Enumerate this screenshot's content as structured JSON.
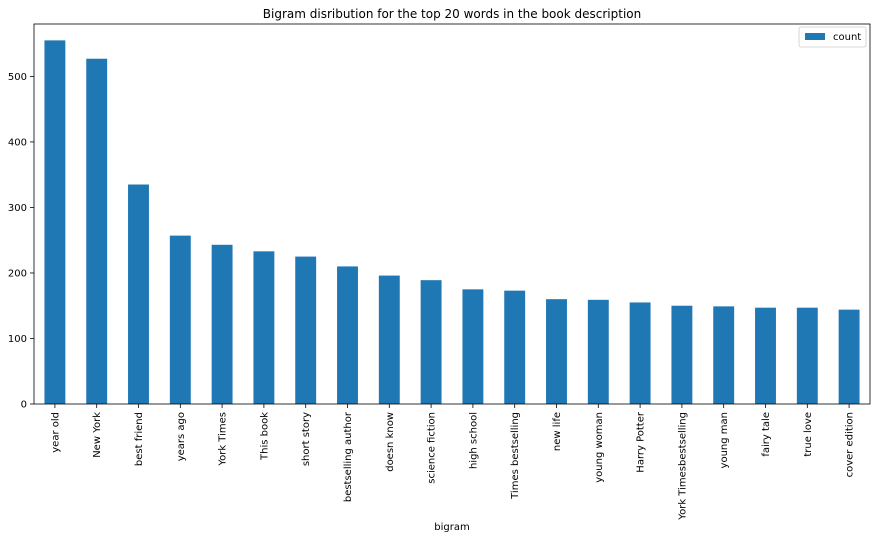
{
  "chart_data": {
    "type": "bar",
    "title": "Bigram disribution for the top 20 words in the book description",
    "xlabel": "bigram",
    "ylabel": "",
    "ylim": [
      0,
      580
    ],
    "yticks": [
      0,
      100,
      200,
      300,
      400,
      500
    ],
    "legend_position": "top-right",
    "bar_color": "#1f77b4",
    "categories": [
      "year old",
      "New York",
      "best friend",
      "years ago",
      "York Times",
      "This book",
      "short story",
      "bestselling author",
      "doesn know",
      "science fiction",
      "high school",
      "Times bestselling",
      "new life",
      "young woman",
      "Harry Potter",
      "York Timesbestselling",
      "young man",
      "fairy tale",
      "true love",
      "cover edition"
    ],
    "series": [
      {
        "name": "count",
        "values": [
          555,
          527,
          335,
          257,
          243,
          233,
          225,
          210,
          196,
          189,
          175,
          173,
          160,
          159,
          155,
          150,
          149,
          147,
          147,
          144
        ]
      }
    ]
  }
}
